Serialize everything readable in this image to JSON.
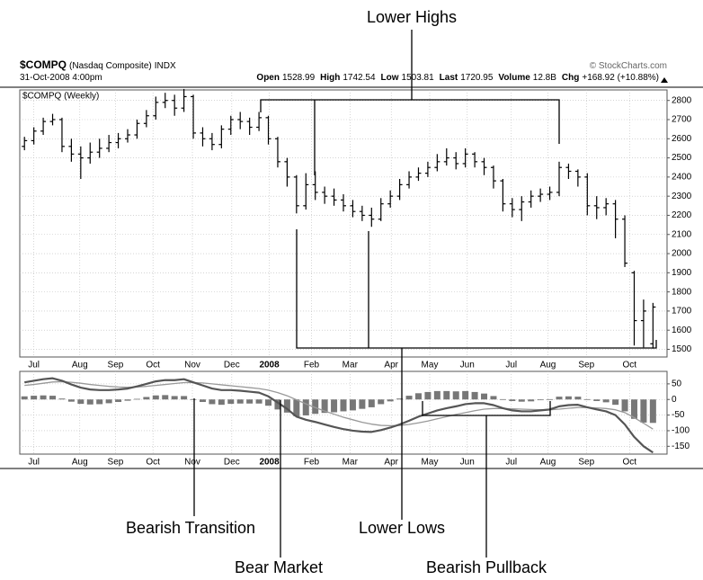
{
  "header": {
    "symbol": "$COMPQ",
    "name": "(Nasdaq Composite)",
    "exchange": "INDX",
    "source": "© StockCharts.com",
    "date": "31-Oct-2008 4:00pm",
    "stats": [
      {
        "label": "Open",
        "value": "1528.99"
      },
      {
        "label": "High",
        "value": "1742.54"
      },
      {
        "label": "Low",
        "value": "1503.81"
      },
      {
        "label": "Last",
        "value": "1720.95"
      },
      {
        "label": "Volume",
        "value": "12.8B"
      },
      {
        "label": "Chg",
        "value": "+168.92 (+10.88%)"
      }
    ]
  },
  "annotations": [
    "Lower Highs",
    "Bearish Transition",
    "Lower Lows",
    "Bear Market",
    "Bearish Pullback"
  ],
  "chart_data": [
    {
      "type": "ohlc",
      "title": "$COMPQ (Weekly)",
      "color": "#000000",
      "xlim": [
        -0.5,
        68.5
      ],
      "xticks": [
        {
          "value": 1,
          "label": "Jul"
        },
        {
          "value": 5.9,
          "label": "Aug"
        },
        {
          "value": 9.7,
          "label": "Sep"
        },
        {
          "value": 13.7,
          "label": "Oct"
        },
        {
          "value": 17.9,
          "label": "Nov"
        },
        {
          "value": 22.1,
          "label": "Dec"
        },
        {
          "value": 26.1,
          "label": "2008",
          "bold": true
        },
        {
          "value": 30.6,
          "label": "Feb"
        },
        {
          "value": 34.7,
          "label": "Mar"
        },
        {
          "value": 39.1,
          "label": "Apr"
        },
        {
          "value": 43.2,
          "label": "May"
        },
        {
          "value": 47.2,
          "label": "Jun"
        },
        {
          "value": 51.9,
          "label": "Jul"
        },
        {
          "value": 55.8,
          "label": "Aug"
        },
        {
          "value": 59.9,
          "label": "Sep"
        },
        {
          "value": 64.5,
          "label": "Oct"
        }
      ],
      "ylim": [
        1460,
        2855
      ],
      "yticks": [
        1500,
        1600,
        1700,
        1800,
        1900,
        2000,
        2100,
        2200,
        2300,
        2400,
        2500,
        2600,
        2700,
        2800
      ],
      "grid": true,
      "open": [
        2560,
        2590,
        2640,
        2690,
        2700,
        2560,
        2520,
        2500,
        2530,
        2550,
        2580,
        2600,
        2620,
        2680,
        2720,
        2790,
        2800,
        2760,
        2820,
        2630,
        2600,
        2570,
        2650,
        2700,
        2690,
        2660,
        2710,
        2600,
        2480,
        2400,
        2250,
        2360,
        2320,
        2300,
        2280,
        2250,
        2220,
        2200,
        2180,
        2260,
        2300,
        2360,
        2400,
        2420,
        2450,
        2480,
        2500,
        2470,
        2520,
        2480,
        2450,
        2380,
        2260,
        2230,
        2270,
        2300,
        2310,
        2320,
        2450,
        2430,
        2400,
        2250,
        2240,
        2260,
        2180,
        1900,
        1650,
        1528.99
      ],
      "high": [
        2610,
        2660,
        2710,
        2730,
        2710,
        2600,
        2560,
        2580,
        2600,
        2620,
        2630,
        2650,
        2700,
        2750,
        2820,
        2840,
        2830,
        2860,
        2830,
        2660,
        2630,
        2670,
        2720,
        2740,
        2710,
        2740,
        2720,
        2610,
        2500,
        2410,
        2420,
        2430,
        2350,
        2340,
        2310,
        2280,
        2250,
        2240,
        2290,
        2330,
        2390,
        2430,
        2450,
        2480,
        2520,
        2550,
        2530,
        2550,
        2530,
        2500,
        2460,
        2390,
        2290,
        2300,
        2330,
        2340,
        2350,
        2480,
        2470,
        2440,
        2420,
        2300,
        2290,
        2280,
        2200,
        1910,
        1760,
        1742.54
      ],
      "low": [
        2540,
        2570,
        2620,
        2670,
        2530,
        2480,
        2390,
        2470,
        2500,
        2530,
        2550,
        2580,
        2600,
        2660,
        2700,
        2760,
        2720,
        2740,
        2600,
        2560,
        2540,
        2550,
        2620,
        2650,
        2620,
        2640,
        2570,
        2450,
        2350,
        2210,
        2230,
        2280,
        2260,
        2250,
        2220,
        2190,
        2170,
        2140,
        2170,
        2240,
        2280,
        2340,
        2380,
        2400,
        2430,
        2460,
        2440,
        2450,
        2450,
        2410,
        2340,
        2220,
        2190,
        2170,
        2240,
        2270,
        2280,
        2300,
        2390,
        2350,
        2200,
        2180,
        2200,
        2080,
        1930,
        1520,
        1510,
        1503.81
      ],
      "close": [
        2590,
        2640,
        2690,
        2700,
        2560,
        2520,
        2500,
        2530,
        2550,
        2580,
        2600,
        2620,
        2680,
        2720,
        2790,
        2800,
        2760,
        2820,
        2630,
        2600,
        2570,
        2650,
        2700,
        2690,
        2660,
        2710,
        2600,
        2480,
        2400,
        2250,
        2360,
        2320,
        2300,
        2280,
        2250,
        2220,
        2200,
        2180,
        2260,
        2300,
        2360,
        2400,
        2420,
        2450,
        2480,
        2500,
        2470,
        2520,
        2480,
        2450,
        2380,
        2260,
        2230,
        2270,
        2300,
        2310,
        2320,
        2450,
        2430,
        2400,
        2250,
        2240,
        2260,
        2180,
        1950,
        1650,
        1700,
        1720.95
      ]
    },
    {
      "type": "macd",
      "xlim": [
        -0.5,
        68.5
      ],
      "xticks": [
        {
          "value": 1,
          "label": "Jul"
        },
        {
          "value": 5.9,
          "label": "Aug"
        },
        {
          "value": 9.7,
          "label": "Sep"
        },
        {
          "value": 13.7,
          "label": "Oct"
        },
        {
          "value": 17.9,
          "label": "Nov"
        },
        {
          "value": 22.1,
          "label": "Dec"
        },
        {
          "value": 26.1,
          "label": "2008",
          "bold": true
        },
        {
          "value": 30.6,
          "label": "Feb"
        },
        {
          "value": 34.7,
          "label": "Mar"
        },
        {
          "value": 39.1,
          "label": "Apr"
        },
        {
          "value": 43.2,
          "label": "May"
        },
        {
          "value": 47.2,
          "label": "Jun"
        },
        {
          "value": 51.9,
          "label": "Jul"
        },
        {
          "value": 55.8,
          "label": "Aug"
        },
        {
          "value": 59.9,
          "label": "Sep"
        },
        {
          "value": 64.5,
          "label": "Oct"
        }
      ],
      "ylim": [
        -175,
        90
      ],
      "yticks": [
        -150,
        -100,
        -50,
        0,
        50
      ],
      "grid": true,
      "macd_color": "#555555",
      "signal_color": "#999999",
      "histogram_color": "#777777",
      "macd": [
        55,
        60,
        65,
        68,
        60,
        48,
        38,
        32,
        30,
        30,
        32,
        35,
        42,
        50,
        58,
        62,
        62,
        65,
        55,
        45,
        35,
        30,
        30,
        28,
        25,
        22,
        10,
        -10,
        -30,
        -55,
        -65,
        -72,
        -80,
        -88,
        -95,
        -100,
        -103,
        -104,
        -98,
        -90,
        -80,
        -68,
        -55,
        -45,
        -35,
        -28,
        -22,
        -15,
        -12,
        -12,
        -18,
        -28,
        -35,
        -38,
        -38,
        -35,
        -32,
        -22,
        -18,
        -17,
        -25,
        -32,
        -38,
        -50,
        -80,
        -120,
        -150,
        -170
      ],
      "signal": [
        45,
        48,
        52,
        56,
        57,
        55,
        52,
        48,
        45,
        42,
        40,
        39,
        40,
        42,
        45,
        48,
        51,
        54,
        54,
        53,
        50,
        47,
        44,
        41,
        38,
        35,
        30,
        22,
        12,
        -1,
        -14,
        -26,
        -37,
        -47,
        -57,
        -65,
        -73,
        -79,
        -83,
        -84,
        -83,
        -80,
        -75,
        -69,
        -62,
        -55,
        -48,
        -42,
        -36,
        -31,
        -29,
        -29,
        -30,
        -31,
        -32,
        -33,
        -33,
        -31,
        -28,
        -26,
        -26,
        -27,
        -29,
        -33,
        -42,
        -58,
        -76,
        -95
      ],
      "histogram": [
        10,
        12,
        13,
        12,
        3,
        -7,
        -14,
        -16,
        -15,
        -12,
        -8,
        -4,
        2,
        8,
        13,
        14,
        11,
        11,
        1,
        -8,
        -15,
        -17,
        -14,
        -13,
        -13,
        -13,
        -20,
        -32,
        -42,
        -54,
        -51,
        -46,
        -43,
        -41,
        -38,
        -35,
        -30,
        -25,
        -15,
        -6,
        3,
        12,
        20,
        24,
        27,
        27,
        26,
        27,
        24,
        19,
        11,
        1,
        -5,
        -7,
        -6,
        -2,
        1,
        9,
        10,
        9,
        1,
        -5,
        -9,
        -17,
        -38,
        -62,
        -74,
        -75
      ]
    }
  ]
}
